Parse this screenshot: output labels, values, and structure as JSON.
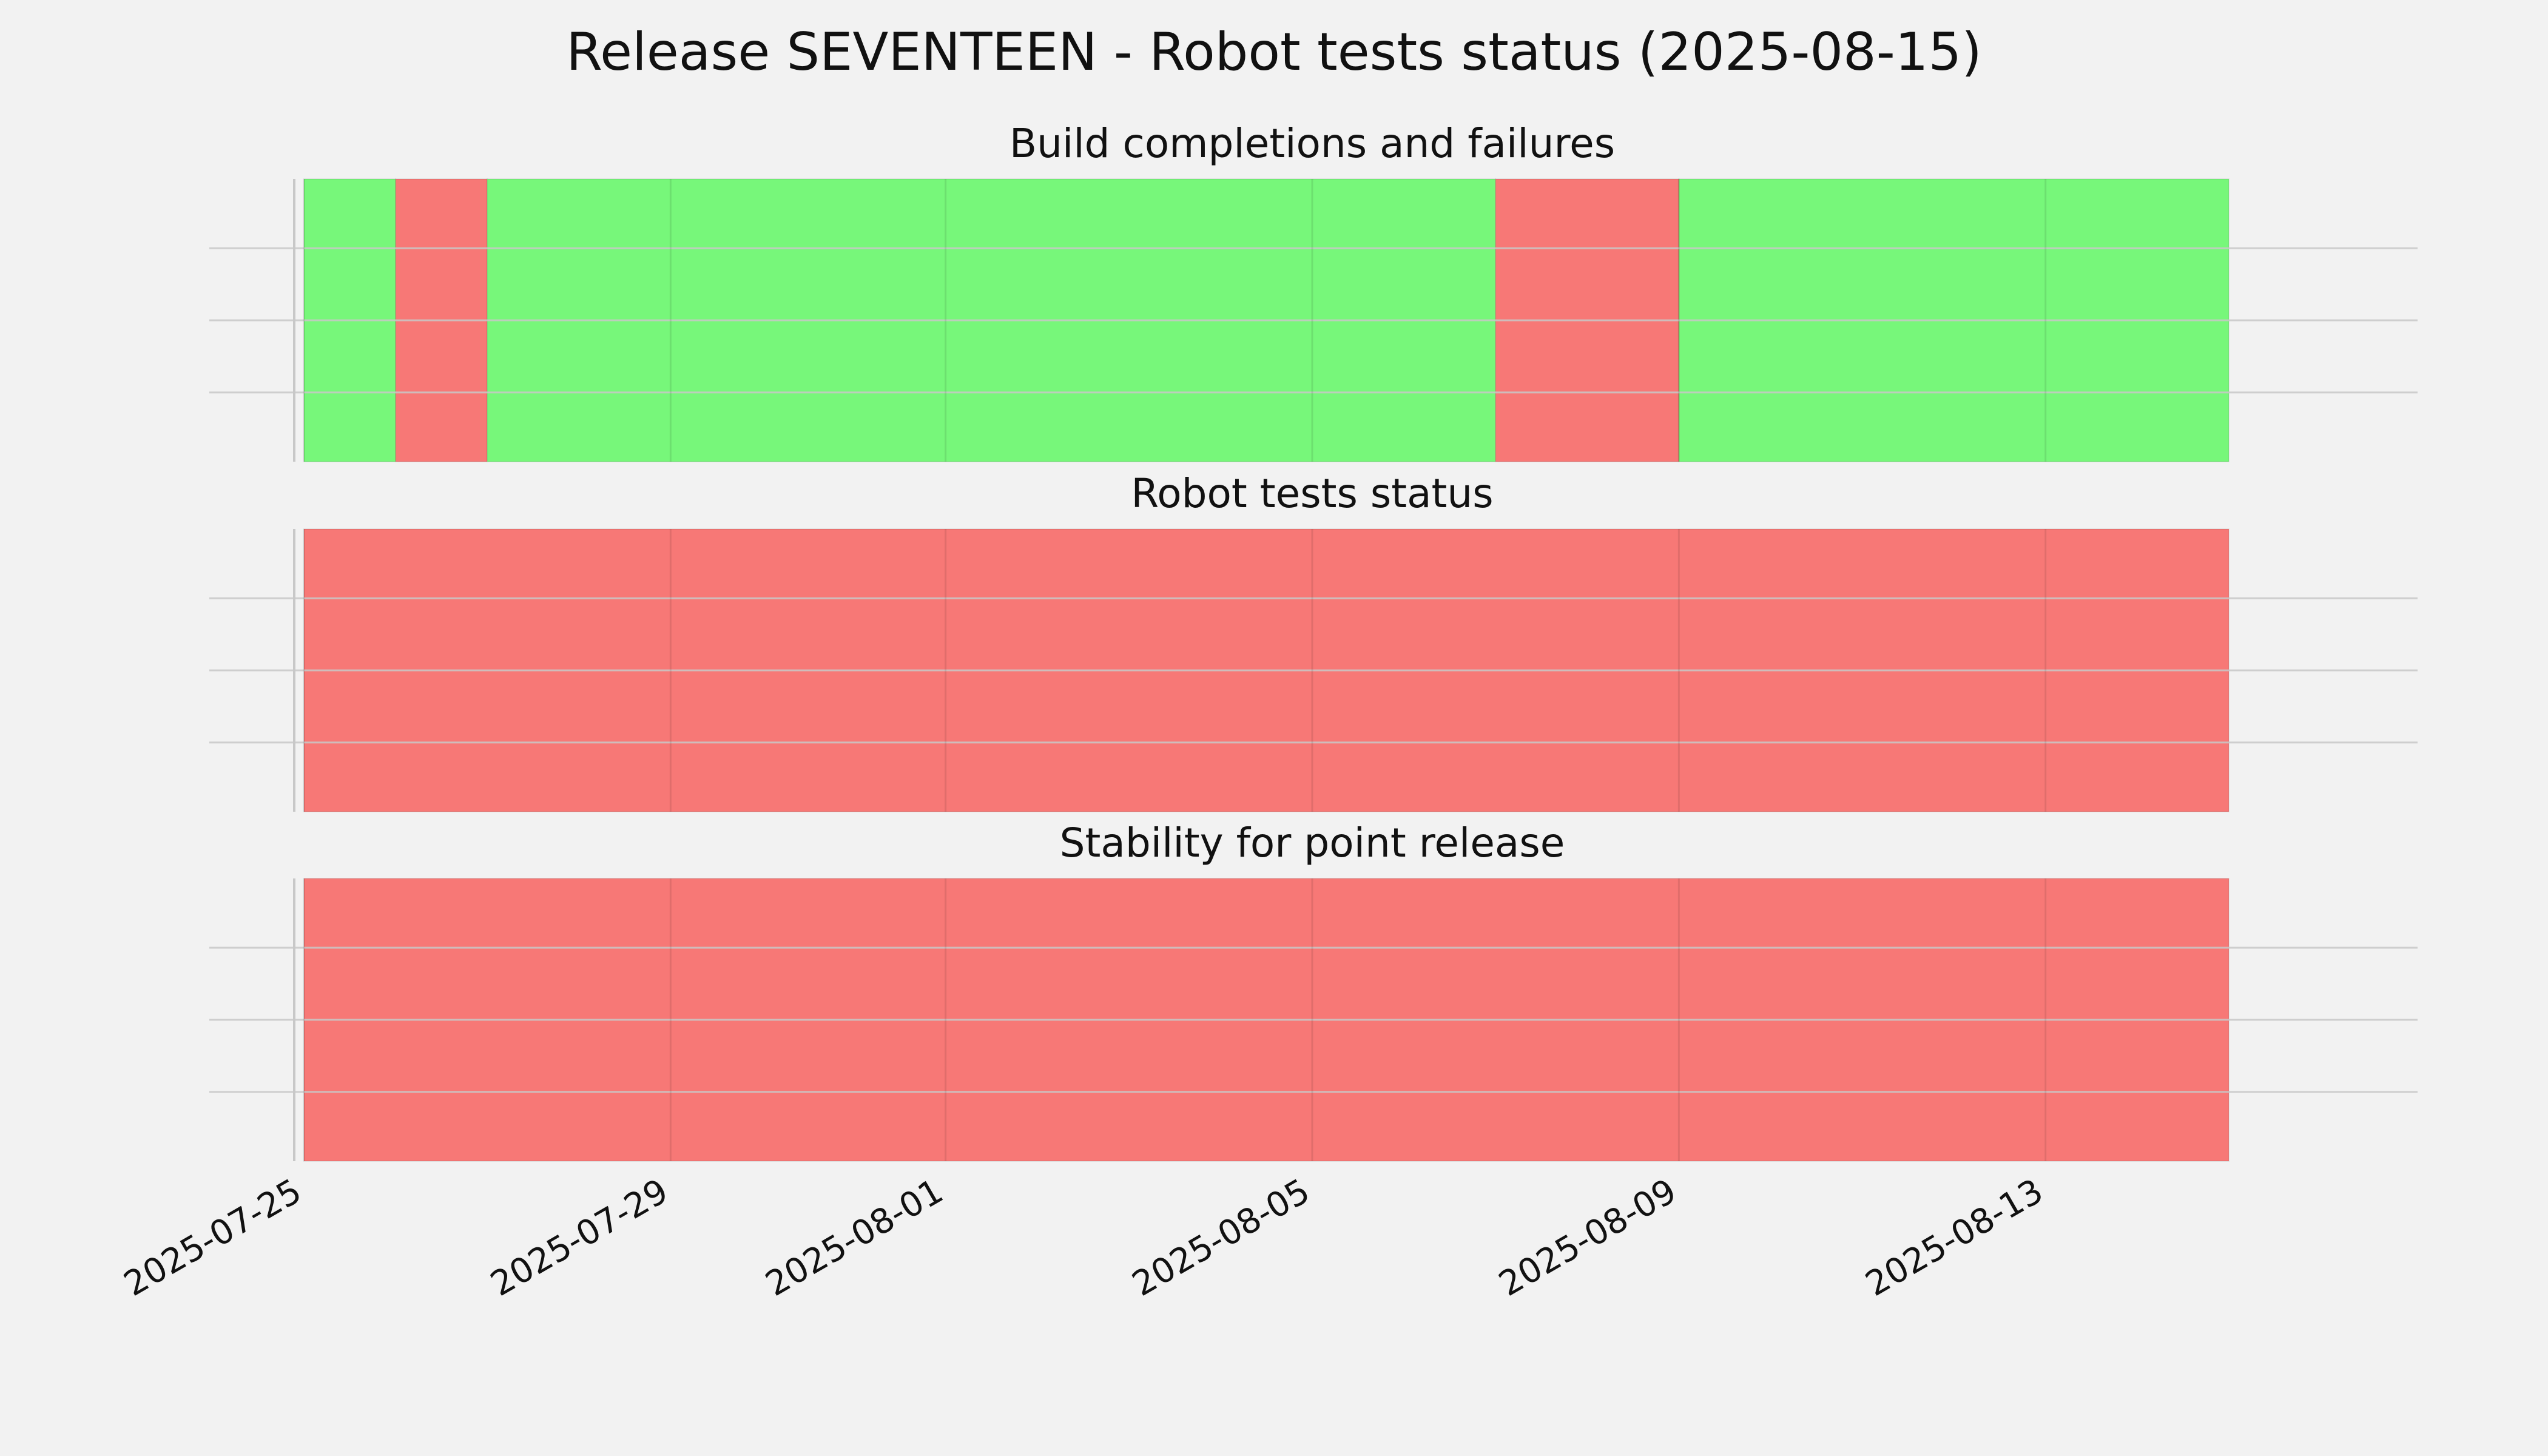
{
  "chart_data": {
    "type": "timeline",
    "title": "Release SEVENTEEN - Robot tests status (2025-08-15)",
    "x_ticks": [
      "2025-07-25",
      "2025-07-29",
      "2025-08-01",
      "2025-08-05",
      "2025-08-09",
      "2025-08-13"
    ],
    "xlim": [
      "2025-07-25",
      "2025-08-16"
    ],
    "grid": true,
    "colors": {
      "pass": "#77f77a",
      "fail": "#f77876",
      "background": "#f2f2f2",
      "grid": "#c8c8c8"
    },
    "panels": [
      {
        "title": "Build completions and failures",
        "segments": [
          {
            "start": "2025-07-25",
            "end": "2025-07-26",
            "status": "pass"
          },
          {
            "start": "2025-07-26",
            "end": "2025-07-27",
            "status": "fail"
          },
          {
            "start": "2025-07-27",
            "end": "2025-08-07",
            "status": "pass"
          },
          {
            "start": "2025-08-07",
            "end": "2025-08-09",
            "status": "fail"
          },
          {
            "start": "2025-08-09",
            "end": "2025-08-15",
            "status": "pass"
          }
        ]
      },
      {
        "title": "Robot tests status",
        "segments": [
          {
            "start": "2025-07-25",
            "end": "2025-08-15",
            "status": "fail"
          }
        ]
      },
      {
        "title": "Stability for point release",
        "segments": [
          {
            "start": "2025-07-25",
            "end": "2025-08-15",
            "status": "fail"
          }
        ]
      }
    ]
  }
}
